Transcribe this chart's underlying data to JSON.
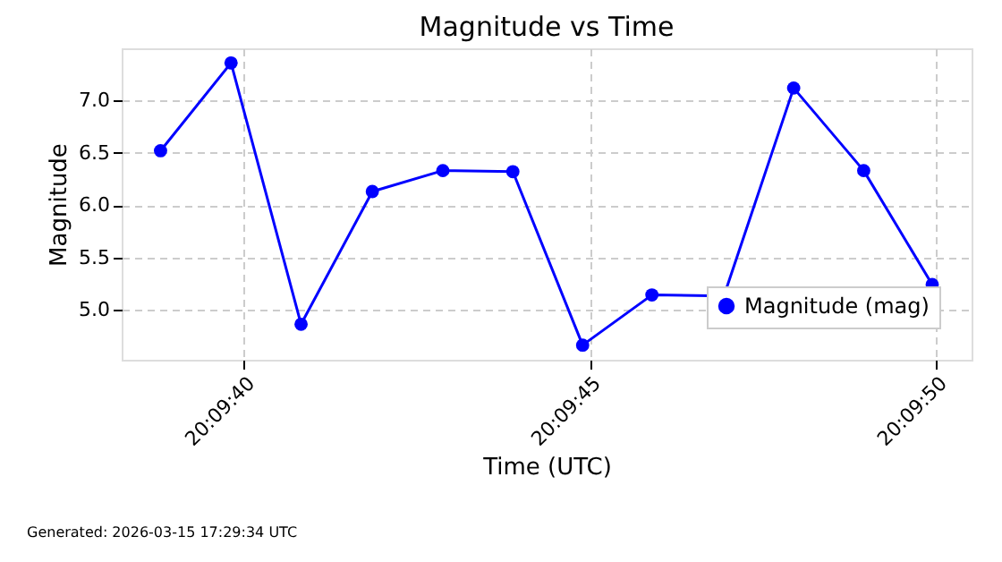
{
  "chart_data": {
    "type": "line",
    "title": "Magnitude vs Time",
    "xlabel": "Time (UTC)",
    "ylabel": "Magnitude",
    "x": [
      20.160778,
      20.161061,
      20.161342,
      20.161628,
      20.161911,
      20.162192,
      20.162472,
      20.16275,
      20.163039,
      20.163319,
      20.1636,
      20.163875
    ],
    "series": [
      {
        "name": "Magnitude (mag)",
        "color": "#0000ff",
        "values": [
          6.52,
          7.36,
          4.86,
          6.13,
          6.33,
          6.32,
          4.66,
          5.14,
          5.13,
          7.12,
          6.33,
          5.24
        ]
      }
    ],
    "xlim": [
      20.160622,
      20.164033
    ],
    "ylim": [
      4.52,
      7.5
    ],
    "xticks": [
      {
        "value": 20.161111,
        "label": "20:09:40"
      },
      {
        "value": 20.1625,
        "label": "20:09:45"
      },
      {
        "value": 20.163889,
        "label": "20:09:50"
      }
    ],
    "yticks": [
      {
        "value": 5,
        "label": "5.0"
      },
      5.5,
      {
        "value": 6,
        "label": "6.0"
      },
      6.5,
      {
        "value": 7,
        "label": "7.0"
      }
    ],
    "grid": true,
    "legend": "bottom right",
    "marker": "circle",
    "line_style": "solid",
    "annotations": [
      "Generated: 2026-03-15 17:29:34 UTC"
    ]
  }
}
